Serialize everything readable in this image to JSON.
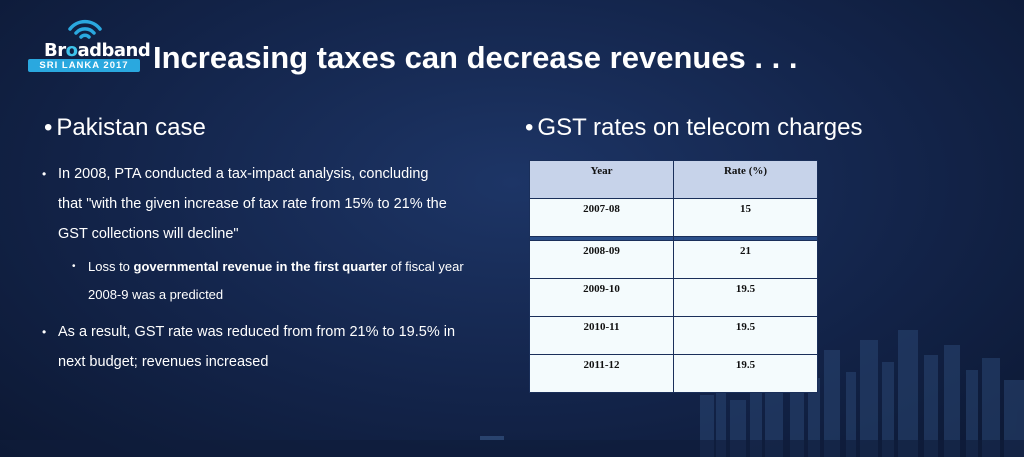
{
  "logo": {
    "pre": "Br",
    "o": "o",
    "post": "adband",
    "band": "SRI LANKA 2017"
  },
  "title": "Increasing taxes can decrease revenues . . .",
  "left": {
    "heading": "Pakistan case",
    "bullet1_line1": "In 2008, PTA conducted a  tax-impact analysis, concluding",
    "bullet1_line2": "that \"with the given increase of tax  rate from 15% to 21% the",
    "bullet1_line3": "GST collections will decline\"",
    "sub_pre": "Loss  to ",
    "sub_bold": "governmental revenue in the first quarter",
    "sub_post": " of fiscal year",
    "sub_line2": "2008-9 was a predicted",
    "bullet2_line1": "As a result, GST rate was reduced from from 21%  to 19.5% in",
    "bullet2_line2": "next budget; revenues increased"
  },
  "right": {
    "heading": "GST rates on telecom charges",
    "table": {
      "headers": [
        "Year",
        "Rate (%)"
      ],
      "rows": [
        [
          "2007-08",
          "15"
        ],
        [
          "2008-09",
          "21"
        ],
        [
          "2009-10",
          "19.5"
        ],
        [
          "2010-11",
          "19.5"
        ],
        [
          "2011-12",
          "19.5"
        ]
      ]
    }
  },
  "colors": {
    "background": "#13244a",
    "logo_accent": "#2aa8df",
    "table_header": "#c7d3ea"
  }
}
